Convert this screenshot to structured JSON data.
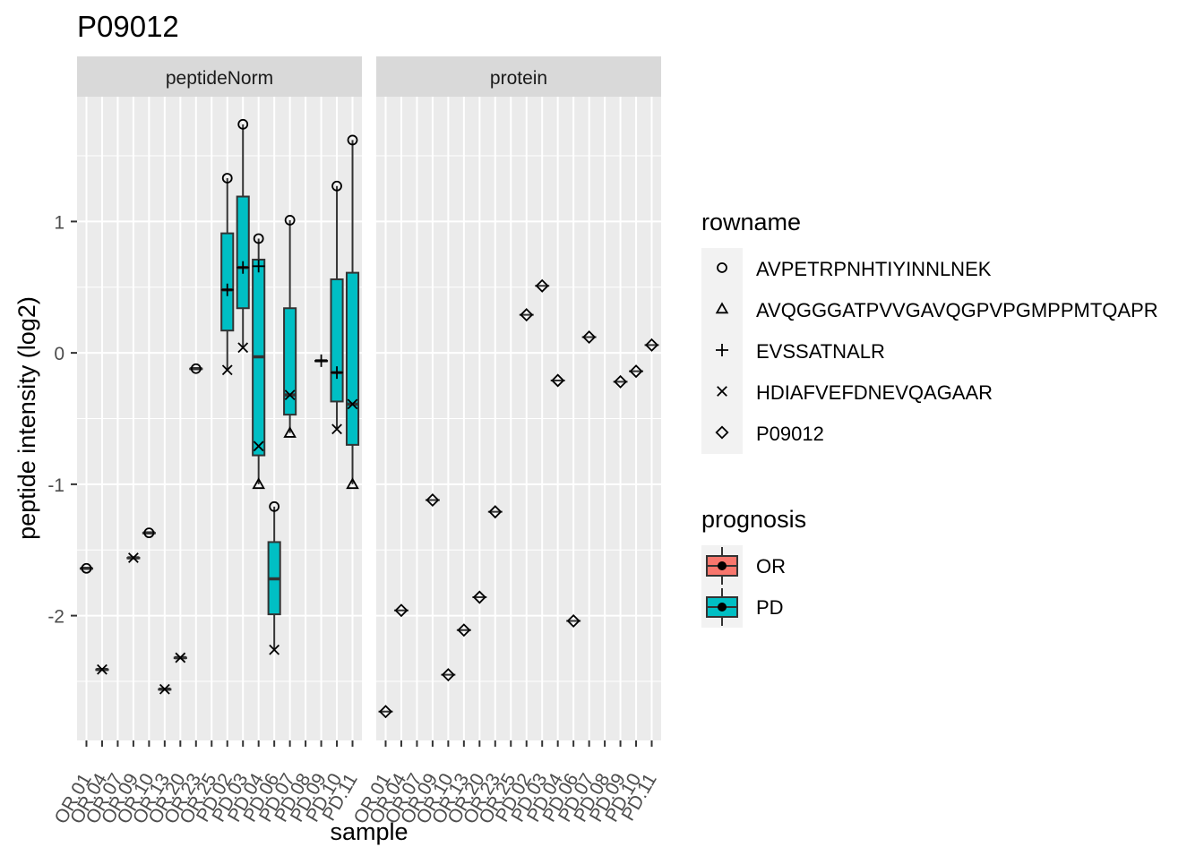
{
  "chart_data": {
    "type": "boxplot",
    "title": "P09012",
    "xlabel": "sample",
    "ylabel": "peptide intensity (log2)",
    "ylim": [
      -2.95,
      1.95
    ],
    "yticks": [
      -2,
      -1,
      0,
      1
    ],
    "grid": true,
    "facets": [
      "peptideNorm",
      "protein"
    ],
    "samples": [
      "OR.01",
      "OR.04",
      "OR.07",
      "OR.09",
      "OR.10",
      "OR.13",
      "OR.20",
      "OR.23",
      "OR.25",
      "PD.02",
      "PD.03",
      "PD.04",
      "PD.06",
      "PD.07",
      "PD.08",
      "PD.09",
      "PD.10",
      "PD.11"
    ],
    "rowname_legend": {
      "title": "rowname",
      "entries": [
        {
          "label": "AVPETRPNHTIYINNLNEK",
          "shape": "circle"
        },
        {
          "label": "AVQGGGATPVVGAVQGPVPGMPPMTQAPR",
          "shape": "triangle"
        },
        {
          "label": "EVSSATNALR",
          "shape": "plus"
        },
        {
          "label": "HDIAFVEFDNEVQAGAAR",
          "shape": "cross"
        },
        {
          "label": "P09012",
          "shape": "diamond"
        }
      ]
    },
    "prognosis_legend": {
      "title": "prognosis",
      "entries": [
        {
          "label": "OR",
          "color": "#F8766D"
        },
        {
          "label": "PD",
          "color": "#00BFC4"
        }
      ]
    },
    "peptideNorm": {
      "points": [
        {
          "sample": "OR.01",
          "shape": "circle",
          "y": -1.64
        },
        {
          "sample": "OR.04",
          "shape": "cross",
          "y": -2.41
        },
        {
          "sample": "OR.09",
          "shape": "cross",
          "y": -1.56
        },
        {
          "sample": "OR.10",
          "shape": "circle",
          "y": -1.37
        },
        {
          "sample": "OR.13",
          "shape": "cross",
          "y": -2.56
        },
        {
          "sample": "OR.20",
          "shape": "cross",
          "y": -2.32
        },
        {
          "sample": "OR.23",
          "shape": "circle",
          "y": -0.12
        },
        {
          "sample": "PD.02",
          "shape": "circle",
          "y": 1.33
        },
        {
          "sample": "PD.02",
          "shape": "plus",
          "y": 0.48
        },
        {
          "sample": "PD.02",
          "shape": "cross",
          "y": -0.13
        },
        {
          "sample": "PD.03",
          "shape": "circle",
          "y": 1.74
        },
        {
          "sample": "PD.03",
          "shape": "plus",
          "y": 0.65
        },
        {
          "sample": "PD.03",
          "shape": "cross",
          "y": 0.04
        },
        {
          "sample": "PD.04",
          "shape": "circle",
          "y": 0.87
        },
        {
          "sample": "PD.04",
          "shape": "plus",
          "y": 0.66
        },
        {
          "sample": "PD.04",
          "shape": "cross",
          "y": -0.71
        },
        {
          "sample": "PD.04",
          "shape": "triangle",
          "y": -1.0
        },
        {
          "sample": "PD.06",
          "shape": "circle",
          "y": -1.17
        },
        {
          "sample": "PD.06",
          "shape": "cross",
          "y": -2.26
        },
        {
          "sample": "PD.07",
          "shape": "circle",
          "y": 1.01
        },
        {
          "sample": "PD.07",
          "shape": "cross",
          "y": -0.32
        },
        {
          "sample": "PD.07",
          "shape": "triangle",
          "y": -0.61
        },
        {
          "sample": "PD.09",
          "shape": "plus",
          "y": -0.06
        },
        {
          "sample": "PD.10",
          "shape": "circle",
          "y": 1.27
        },
        {
          "sample": "PD.10",
          "shape": "plus",
          "y": -0.15
        },
        {
          "sample": "PD.10",
          "shape": "cross",
          "y": -0.58
        },
        {
          "sample": "PD.11",
          "shape": "circle",
          "y": 1.62
        },
        {
          "sample": "PD.11",
          "shape": "cross",
          "y": -0.39
        },
        {
          "sample": "PD.11",
          "shape": "triangle",
          "y": -1.0
        }
      ],
      "boxes": [
        {
          "sample": "OR.01",
          "group": "OR",
          "min": -1.64,
          "q1": -1.64,
          "median": -1.64,
          "q3": -1.64,
          "max": -1.64
        },
        {
          "sample": "OR.04",
          "group": "OR",
          "min": -2.41,
          "q1": -2.41,
          "median": -2.41,
          "q3": -2.41,
          "max": -2.41
        },
        {
          "sample": "OR.09",
          "group": "OR",
          "min": -1.56,
          "q1": -1.56,
          "median": -1.56,
          "q3": -1.56,
          "max": -1.56
        },
        {
          "sample": "OR.10",
          "group": "OR",
          "min": -1.37,
          "q1": -1.37,
          "median": -1.37,
          "q3": -1.37,
          "max": -1.37
        },
        {
          "sample": "OR.13",
          "group": "OR",
          "min": -2.56,
          "q1": -2.56,
          "median": -2.56,
          "q3": -2.56,
          "max": -2.56
        },
        {
          "sample": "OR.20",
          "group": "OR",
          "min": -2.32,
          "q1": -2.32,
          "median": -2.32,
          "q3": -2.32,
          "max": -2.32
        },
        {
          "sample": "OR.23",
          "group": "OR",
          "min": -0.12,
          "q1": -0.12,
          "median": -0.12,
          "q3": -0.12,
          "max": -0.12
        },
        {
          "sample": "PD.02",
          "group": "PD",
          "min": -0.13,
          "q1": 0.17,
          "median": 0.48,
          "q3": 0.91,
          "max": 1.33
        },
        {
          "sample": "PD.03",
          "group": "PD",
          "min": 0.04,
          "q1": 0.34,
          "median": 0.65,
          "q3": 1.19,
          "max": 1.74
        },
        {
          "sample": "PD.04",
          "group": "PD",
          "min": -1.0,
          "q1": -0.78,
          "median": -0.03,
          "q3": 0.71,
          "max": 0.87
        },
        {
          "sample": "PD.06",
          "group": "PD",
          "min": -2.26,
          "q1": -1.99,
          "median": -1.72,
          "q3": -1.44,
          "max": -1.17
        },
        {
          "sample": "PD.07",
          "group": "PD",
          "min": -0.61,
          "q1": -0.47,
          "median": -0.32,
          "q3": 0.34,
          "max": 1.01
        },
        {
          "sample": "PD.09",
          "group": "PD",
          "min": -0.06,
          "q1": -0.06,
          "median": -0.06,
          "q3": -0.06,
          "max": -0.06
        },
        {
          "sample": "PD.10",
          "group": "PD",
          "min": -0.58,
          "q1": -0.37,
          "median": -0.15,
          "q3": 0.56,
          "max": 1.27
        },
        {
          "sample": "PD.11",
          "group": "PD",
          "min": -1.0,
          "q1": -0.7,
          "median": -0.39,
          "q3": 0.61,
          "max": 1.62
        }
      ]
    },
    "protein": {
      "points": [
        {
          "sample": "OR.01",
          "shape": "diamond",
          "y": -2.73
        },
        {
          "sample": "OR.04",
          "shape": "diamond",
          "y": -1.96
        },
        {
          "sample": "OR.09",
          "shape": "diamond",
          "y": -1.12
        },
        {
          "sample": "OR.10",
          "shape": "diamond",
          "y": -2.45
        },
        {
          "sample": "OR.13",
          "shape": "diamond",
          "y": -2.11
        },
        {
          "sample": "OR.20",
          "shape": "diamond",
          "y": -1.86
        },
        {
          "sample": "OR.23",
          "shape": "diamond",
          "y": -1.21
        },
        {
          "sample": "PD.02",
          "shape": "diamond",
          "y": 0.29
        },
        {
          "sample": "PD.03",
          "shape": "diamond",
          "y": 0.51
        },
        {
          "sample": "PD.04",
          "shape": "diamond",
          "y": -0.21
        },
        {
          "sample": "PD.06",
          "shape": "diamond",
          "y": -2.04
        },
        {
          "sample": "PD.07",
          "shape": "diamond",
          "y": 0.12
        },
        {
          "sample": "PD.09",
          "shape": "diamond",
          "y": -0.22
        },
        {
          "sample": "PD.10",
          "shape": "diamond",
          "y": -0.14
        },
        {
          "sample": "PD.11",
          "shape": "diamond",
          "y": 0.06
        }
      ]
    }
  }
}
